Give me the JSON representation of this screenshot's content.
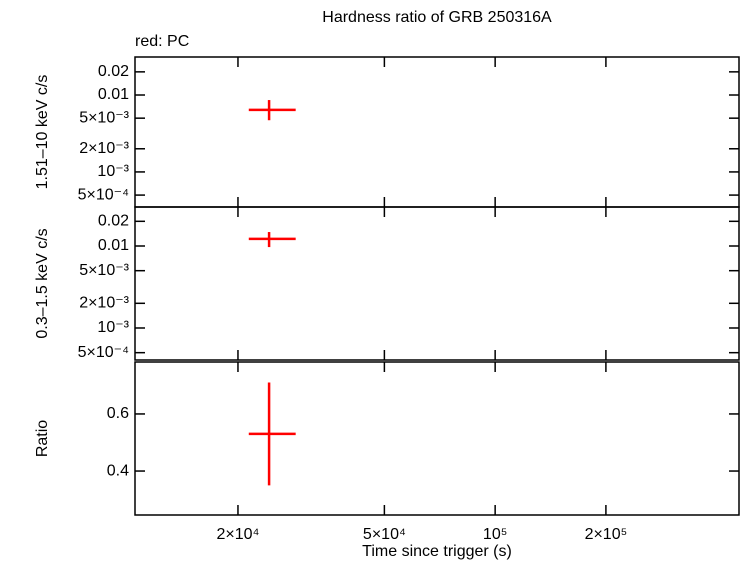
{
  "chart_data": [
    {
      "type": "errorbar",
      "title": "Hardness ratio of GRB 250316A",
      "annotation": "red: PC",
      "ylabel": "1.51–10 keV c/s",
      "xlog": true,
      "ylog": true,
      "xlim": [
        10500,
        460000
      ],
      "ylim": [
        0.00035,
        0.0312
      ],
      "yticks": [
        0.02,
        0.01,
        {
          "value": 0.005,
          "label": "5×10⁻³"
        },
        {
          "value": 0.002,
          "label": "2×10⁻³"
        },
        {
          "value": 0.001,
          "label": "10⁻³"
        },
        {
          "value": 0.0005,
          "label": "5×10⁻⁴"
        }
      ],
      "series": [
        {
          "color": "#ff0000",
          "x": [
            24300
          ],
          "x_err_minus": [
            2900
          ],
          "x_err_plus": [
            4400
          ],
          "values": [
            0.0064
          ],
          "err_minus": [
            0.0017
          ],
          "err_plus": [
            0.0022
          ]
        }
      ]
    },
    {
      "type": "errorbar",
      "ylabel": "0.3–1.5 keV c/s",
      "xlog": true,
      "ylog": true,
      "xlim": [
        10500,
        460000
      ],
      "ylim": [
        0.000407,
        0.0299
      ],
      "yticks": [
        0.02,
        0.01,
        {
          "value": 0.005,
          "label": "5×10⁻³"
        },
        {
          "value": 0.002,
          "label": "2×10⁻³"
        },
        {
          "value": 0.001,
          "label": "10⁻³"
        },
        {
          "value": 0.0005,
          "label": "5×10⁻⁴"
        }
      ],
      "series": [
        {
          "color": "#ff0000",
          "x": [
            24300
          ],
          "x_err_minus": [
            2900
          ],
          "x_err_plus": [
            4400
          ],
          "values": [
            0.0122
          ],
          "err_minus": [
            0.0025
          ],
          "err_plus": [
            0.0026
          ]
        }
      ]
    },
    {
      "type": "errorbar",
      "ylabel": "Ratio",
      "xlabel": "Time since trigger (s)",
      "xlog": true,
      "ylog": false,
      "xlim": [
        10500,
        460000
      ],
      "ylim": [
        0.246,
        0.782
      ],
      "yticks": [
        0.6,
        0.4
      ],
      "xticks": [
        {
          "value": 20000,
          "label": "2×10⁴"
        },
        {
          "value": 50000,
          "label": "5×10⁴"
        },
        {
          "value": 100000,
          "label": "10⁵"
        },
        {
          "value": 200000,
          "label": "2×10⁵"
        }
      ],
      "series": [
        {
          "color": "#ff0000",
          "x": [
            24300
          ],
          "x_err_minus": [
            2900
          ],
          "x_err_plus": [
            4400
          ],
          "values": [
            0.53
          ],
          "err_minus": [
            0.18
          ],
          "err_plus": [
            0.18
          ]
        }
      ]
    }
  ]
}
